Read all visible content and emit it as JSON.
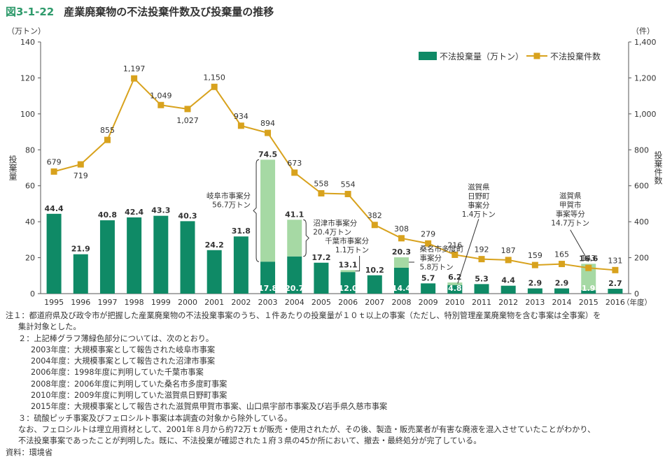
{
  "figure": {
    "number": "図3-1-22",
    "title": "産業廃棄物の不法投棄件数及び投棄量の推移"
  },
  "axes": {
    "left_unit": "（万トン）",
    "right_unit": "（件）",
    "left_label": "投棄量",
    "right_label": "投棄件数",
    "year_suffix": "（年度）"
  },
  "chart_data": {
    "type": "bar",
    "categories": [
      "1995",
      "1996",
      "1997",
      "1998",
      "1999",
      "2000",
      "2001",
      "2002",
      "2003",
      "2004",
      "2005",
      "2006",
      "2007",
      "2008",
      "2009",
      "2010",
      "2011",
      "2012",
      "2013",
      "2014",
      "2015",
      "2016"
    ],
    "series": [
      {
        "name": "不法投棄量（万トン）",
        "type": "bar",
        "axis": "left",
        "color": "#0f8a66",
        "values": [
          44.4,
          21.9,
          40.8,
          42.4,
          43.3,
          40.3,
          24.2,
          31.8,
          17.8,
          20.7,
          17.2,
          12.0,
          10.2,
          14.4,
          5.7,
          4.8,
          5.3,
          4.4,
          2.9,
          2.9,
          1.9,
          2.7
        ]
      },
      {
        "name": "大規模事案分",
        "type": "bar-stack",
        "axis": "left",
        "color": "#a6d9a4",
        "values": [
          0,
          0,
          0,
          0,
          0,
          0,
          0,
          0,
          56.7,
          20.4,
          0,
          1.1,
          0,
          5.8,
          0,
          1.4,
          0,
          0,
          0,
          0,
          14.7,
          0
        ]
      },
      {
        "name": "不法投棄件数",
        "type": "line",
        "axis": "right",
        "color": "#d8a21d",
        "values": [
          679,
          719,
          855,
          1197,
          1049,
          1027,
          1150,
          934,
          894,
          673,
          558,
          554,
          382,
          308,
          279,
          216,
          192,
          187,
          159,
          165,
          143,
          131
        ]
      }
    ],
    "bar_total_labels": [
      "44.4",
      "21.9",
      "40.8",
      "42.4",
      "43.3",
      "40.3",
      "24.2",
      "31.8",
      "74.5",
      "41.1",
      "17.2",
      "13.1",
      "10.2",
      "20.3",
      "5.7",
      "6.2",
      "5.3",
      "4.4",
      "2.9",
      "2.9",
      "16.6",
      "2.7"
    ],
    "bar_base_labels": [
      "",
      "",
      "",
      "",
      "",
      "",
      "",
      "",
      "17.8",
      "20.7",
      "",
      "12.0",
      "",
      "14.4",
      "",
      "4.8",
      "",
      "",
      "",
      "",
      "1.9",
      "2.7"
    ],
    "count_labels": [
      "679",
      "719",
      "855",
      "1,197",
      "1,049",
      "1,027",
      "1,150",
      "934",
      "894",
      "673",
      "558",
      "554",
      "382",
      "308",
      "279",
      "216",
      "192",
      "187",
      "159",
      "165",
      "143",
      "131"
    ],
    "ylim_left": [
      0,
      140
    ],
    "ylim_right": [
      0,
      1400
    ],
    "yticks_left": [
      "0",
      "20",
      "40",
      "60",
      "80",
      "100",
      "120",
      "140"
    ],
    "yticks_right": [
      "0",
      "200",
      "400",
      "600",
      "800",
      "1,000",
      "1,200",
      "1,400"
    ],
    "legend_position": "top-right",
    "grid": false,
    "annotations": [
      {
        "year": "2003",
        "text": [
          "岐阜市事案分",
          "56.7万トン"
        ]
      },
      {
        "year": "2004",
        "text": [
          "沼津市事案分",
          "20.4万トン"
        ]
      },
      {
        "year": "2006",
        "text": [
          "千葉市事案分",
          "1.1万トン"
        ]
      },
      {
        "year": "2008",
        "text": [
          "桑名市多度町",
          "事案分",
          "5.8万トン"
        ]
      },
      {
        "year": "2010",
        "text": [
          "滋賀県",
          "日野町",
          "事案分",
          "1.4万トン"
        ]
      },
      {
        "year": "2015",
        "text": [
          "滋賀県",
          "甲賀市",
          "事案等分",
          "14.7万トン"
        ]
      }
    ]
  },
  "notes": [
    "注１：都道府県及び政令市が把握した産業廃棄物の不法投棄事案のうち、１件あたりの投棄量が１０ｔ以上の事案（ただし、特別管理産業廃棄物を含む事案は全事案）を",
    "集計対象とした。",
    "２：上記棒グラフ薄緑色部分については、次のとおり。",
    "2003年度：大規模事案として報告された岐阜市事案",
    "2004年度：大規模事案として報告された沼津市事案",
    "2006年度：1998年度に判明していた千葉市事案",
    "2008年度：2006年度に判明していた桑名市多度町事案",
    "2010年度：2009年度に判明していた滋賀県日野町事案",
    "2015年度：大規模事案として報告された滋賀県甲賀市事案、山口県宇部市事案及び岩手県久慈市事案",
    "３：硫酸ピッチ事案及びフェロシルト事案は本調査の対象から除外している。",
    "なお、フェロシルトは埋立用資材として、2001年８月から約72万ｔが販売・使用されたが、その後、製造・販売業者が有害な廃液を混入させていたことがわかり、",
    "不法投棄事案であったことが判明した。既に、不法投棄が確認された１府３県の45か所において、撤去・最終処分が完了している。",
    "資料：環境省"
  ]
}
